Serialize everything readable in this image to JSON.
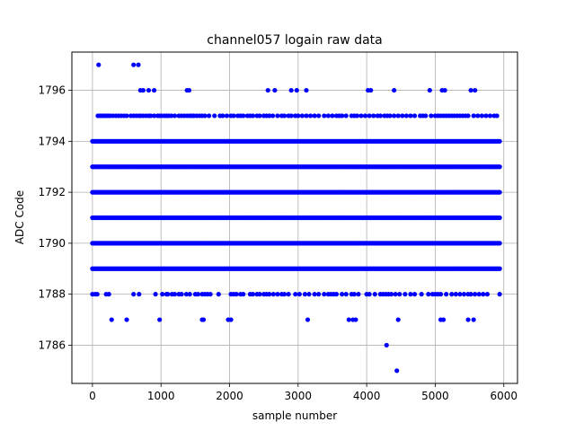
{
  "chart_data": {
    "type": "scatter",
    "title": "channel057 logain raw data",
    "xlabel": "sample number",
    "ylabel": "ADC Code",
    "xlim": [
      -300,
      6200
    ],
    "ylim": [
      1784.5,
      1797.5
    ],
    "xticks": [
      0,
      1000,
      2000,
      3000,
      4000,
      5000,
      6000
    ],
    "yticks": [
      1786,
      1788,
      1790,
      1792,
      1794,
      1796
    ],
    "grid": true,
    "marker_color": "#0000ff",
    "dense_levels": [
      {
        "y": 1789,
        "x_range": [
          0,
          5950
        ]
      },
      {
        "y": 1790,
        "x_range": [
          0,
          5950
        ]
      },
      {
        "y": 1791,
        "x_range": [
          0,
          5950
        ]
      },
      {
        "y": 1792,
        "x_range": [
          0,
          5950
        ]
      },
      {
        "y": 1793,
        "x_range": [
          0,
          5950
        ]
      },
      {
        "y": 1794,
        "x_range": [
          0,
          5950
        ]
      }
    ],
    "sparse_points": {
      "1795": [
        80,
        110,
        140,
        170,
        200,
        230,
        260,
        300,
        340,
        380,
        420,
        460,
        500,
        560,
        600,
        640,
        680,
        700,
        740,
        780,
        820,
        850,
        900,
        950,
        980,
        1010,
        1050,
        1080,
        1110,
        1150,
        1200,
        1260,
        1300,
        1340,
        1380,
        1420,
        1450,
        1480,
        1520,
        1560,
        1600,
        1640,
        1700,
        1780,
        1860,
        1900,
        1960,
        2020,
        2060,
        2120,
        2160,
        2200,
        2260,
        2300,
        2340,
        2400,
        2440,
        2500,
        2540,
        2580,
        2630,
        2700,
        2760,
        2800,
        2860,
        2900,
        2960,
        3000,
        3060,
        3120,
        3180,
        3240,
        3300,
        3380,
        3440,
        3500,
        3560,
        3600,
        3640,
        3700,
        3780,
        3820,
        3860,
        3920,
        3980,
        4040,
        4100,
        4160,
        4200,
        4260,
        4300,
        4340,
        4400,
        4460,
        4520,
        4580,
        4640,
        4700,
        4780,
        4820,
        4860,
        4940,
        5000,
        5040,
        5080,
        5120,
        5160,
        5200,
        5240,
        5280,
        5320,
        5360,
        5400,
        5440,
        5480,
        5560,
        5620,
        5680,
        5740,
        5800,
        5860,
        5900
      ],
      "1796": [
        700,
        740,
        820,
        900,
        1380,
        1410,
        2560,
        2660,
        2900,
        2980,
        3120,
        4020,
        4060,
        4400,
        4920,
        5100,
        5140,
        5520,
        5580
      ],
      "1797": [
        90,
        600,
        670
      ],
      "1788": [
        0,
        40,
        70,
        200,
        240,
        600,
        680,
        920,
        1020,
        1080,
        1100,
        1160,
        1200,
        1260,
        1300,
        1370,
        1420,
        1500,
        1540,
        1600,
        1640,
        1680,
        1720,
        1840,
        2020,
        2060,
        2100,
        2160,
        2200,
        2300,
        2340,
        2400,
        2440,
        2500,
        2540,
        2580,
        2640,
        2700,
        2760,
        2800,
        2860,
        2960,
        3020,
        3100,
        3160,
        3240,
        3300,
        3380,
        3440,
        3480,
        3520,
        3560,
        3640,
        3700,
        3780,
        3820,
        3880,
        4000,
        4040,
        4120,
        4200,
        4240,
        4280,
        4320,
        4360,
        4420,
        4480,
        4560,
        4640,
        4700,
        4800,
        4900,
        4960,
        5000,
        5040,
        5080,
        5160,
        5240,
        5300,
        5360,
        5420,
        5480,
        5520,
        5580,
        5640,
        5700,
        5760,
        5940
      ],
      "1787": [
        280,
        500,
        980,
        1600,
        1620,
        1980,
        2020,
        3140,
        3740,
        3800,
        3840,
        4460,
        5080,
        5120,
        5480,
        5560
      ],
      "1786": [
        4290
      ],
      "1785": [
        4440
      ]
    }
  }
}
